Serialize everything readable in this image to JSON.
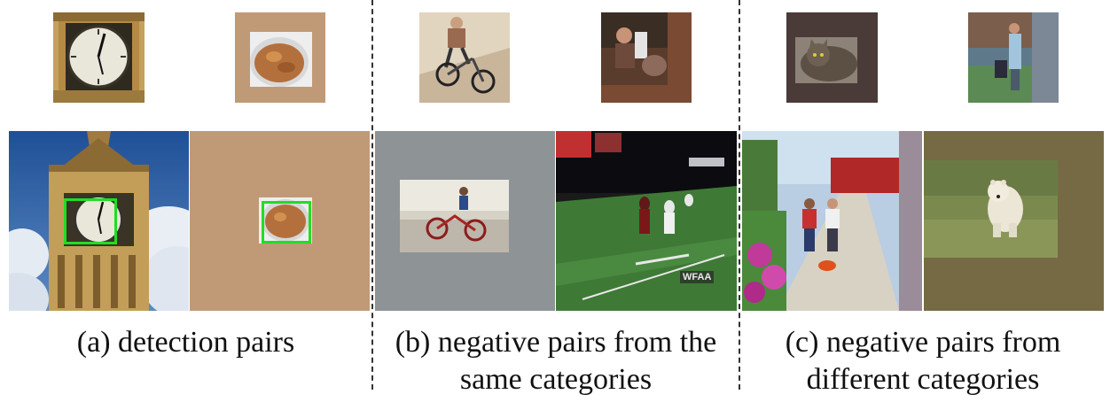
{
  "captions": {
    "a": "(a) detection pairs",
    "b_line1": "(b) negative pairs from the",
    "b_line2": "same categories",
    "c_line1": "(c) negative pairs from",
    "c_line2": "different categories"
  },
  "colors": {
    "detection_box": "#22dd22",
    "tan_padding": "#c09a76",
    "gray_padding": "#8e9396",
    "mauve_padding": "#9a8c98",
    "olive_padding": "#756a44",
    "brown_padding": "#7a4a33",
    "cat_padding": "#4a3b38",
    "slate_padding": "#7c8896"
  },
  "overlay_text": {
    "tv_logo": "WFAA"
  }
}
